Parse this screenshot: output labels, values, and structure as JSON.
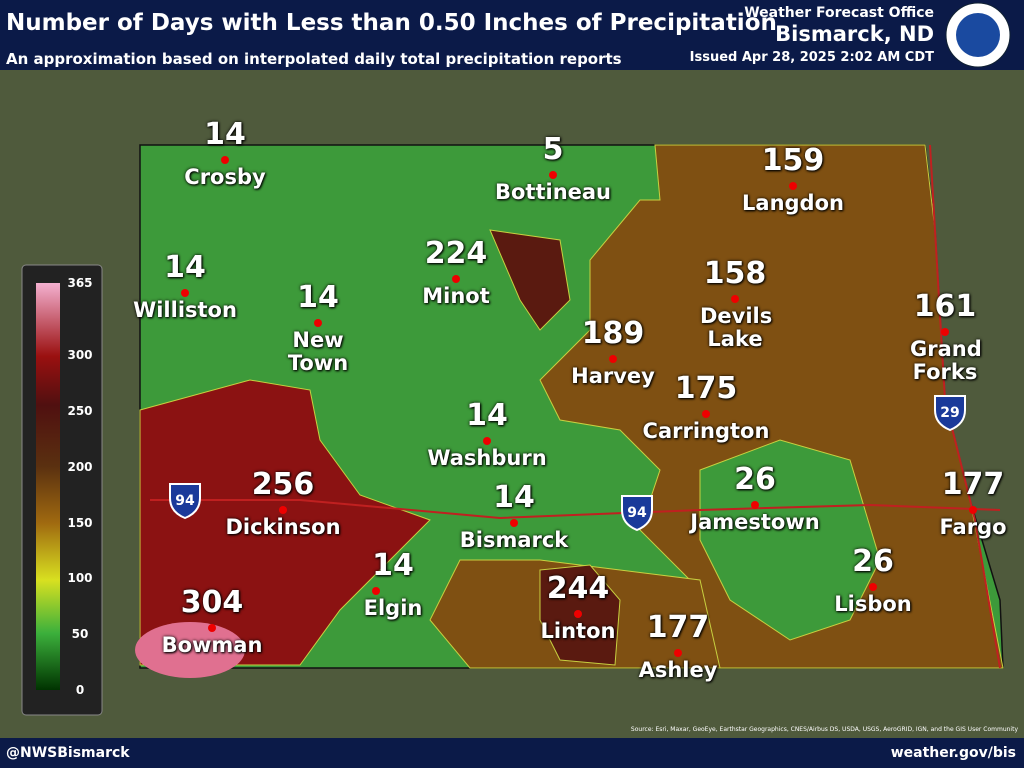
{
  "header": {
    "title": "Number of Days with Less than 0.50 Inches of Precipitation",
    "subtitle": "An approximation based on interpolated daily total precipitation reports",
    "office": "Weather Forecast Office",
    "location": "Bismarck, ND",
    "issued": "Issued Apr 28, 2025 2:02 AM CDT"
  },
  "legend": {
    "ticks": [
      0,
      50,
      100,
      150,
      200,
      250,
      300,
      365
    ]
  },
  "cities": [
    {
      "name": "Crosby",
      "value": 14
    },
    {
      "name": "Bottineau",
      "value": 5
    },
    {
      "name": "Langdon",
      "value": 159
    },
    {
      "name": "Williston",
      "value": 14
    },
    {
      "name": "New Town",
      "value": 14
    },
    {
      "name": "Minot",
      "value": 224
    },
    {
      "name": "Devils Lake",
      "value": 158
    },
    {
      "name": "Grand Forks",
      "value": 161
    },
    {
      "name": "Harvey",
      "value": 189
    },
    {
      "name": "Carrington",
      "value": 175
    },
    {
      "name": "Washburn",
      "value": 14
    },
    {
      "name": "Dickinson",
      "value": 256
    },
    {
      "name": "Bismarck",
      "value": 14
    },
    {
      "name": "Jamestown",
      "value": 26
    },
    {
      "name": "Fargo",
      "value": 177
    },
    {
      "name": "Elgin",
      "value": 14
    },
    {
      "name": "Linton",
      "value": 244
    },
    {
      "name": "Lisbon",
      "value": 26
    },
    {
      "name": "Bowman",
      "value": 304
    },
    {
      "name": "Ashley",
      "value": 177
    }
  ],
  "interstates": [
    "94",
    "94",
    "29"
  ],
  "footer": {
    "left": "@NWSBismarck",
    "right": "weather.gov/bis",
    "source": "Source: Esri, Maxar, GeoEye, Earthstar Geographics, CNES/Airbus DS, USDA, USGS, AeroGRID, IGN, and the GIS User Community"
  }
}
